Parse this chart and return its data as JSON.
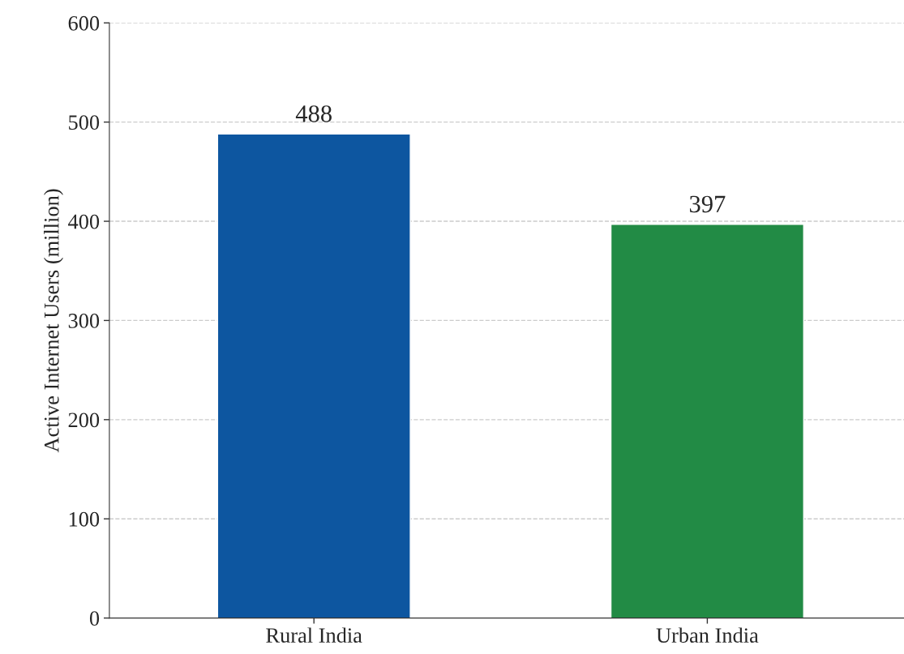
{
  "chart_data": {
    "type": "bar",
    "ylabel": "Active Internet Users (million)",
    "categories": [
      "Rural India",
      "Urban India"
    ],
    "values": [
      488,
      397
    ],
    "colors": [
      "#0d56a0",
      "#228b45"
    ],
    "ylim": [
      0,
      600
    ],
    "yticks": [
      0,
      100,
      200,
      300,
      400,
      500,
      600
    ],
    "grid": "y",
    "data_labels": true
  }
}
